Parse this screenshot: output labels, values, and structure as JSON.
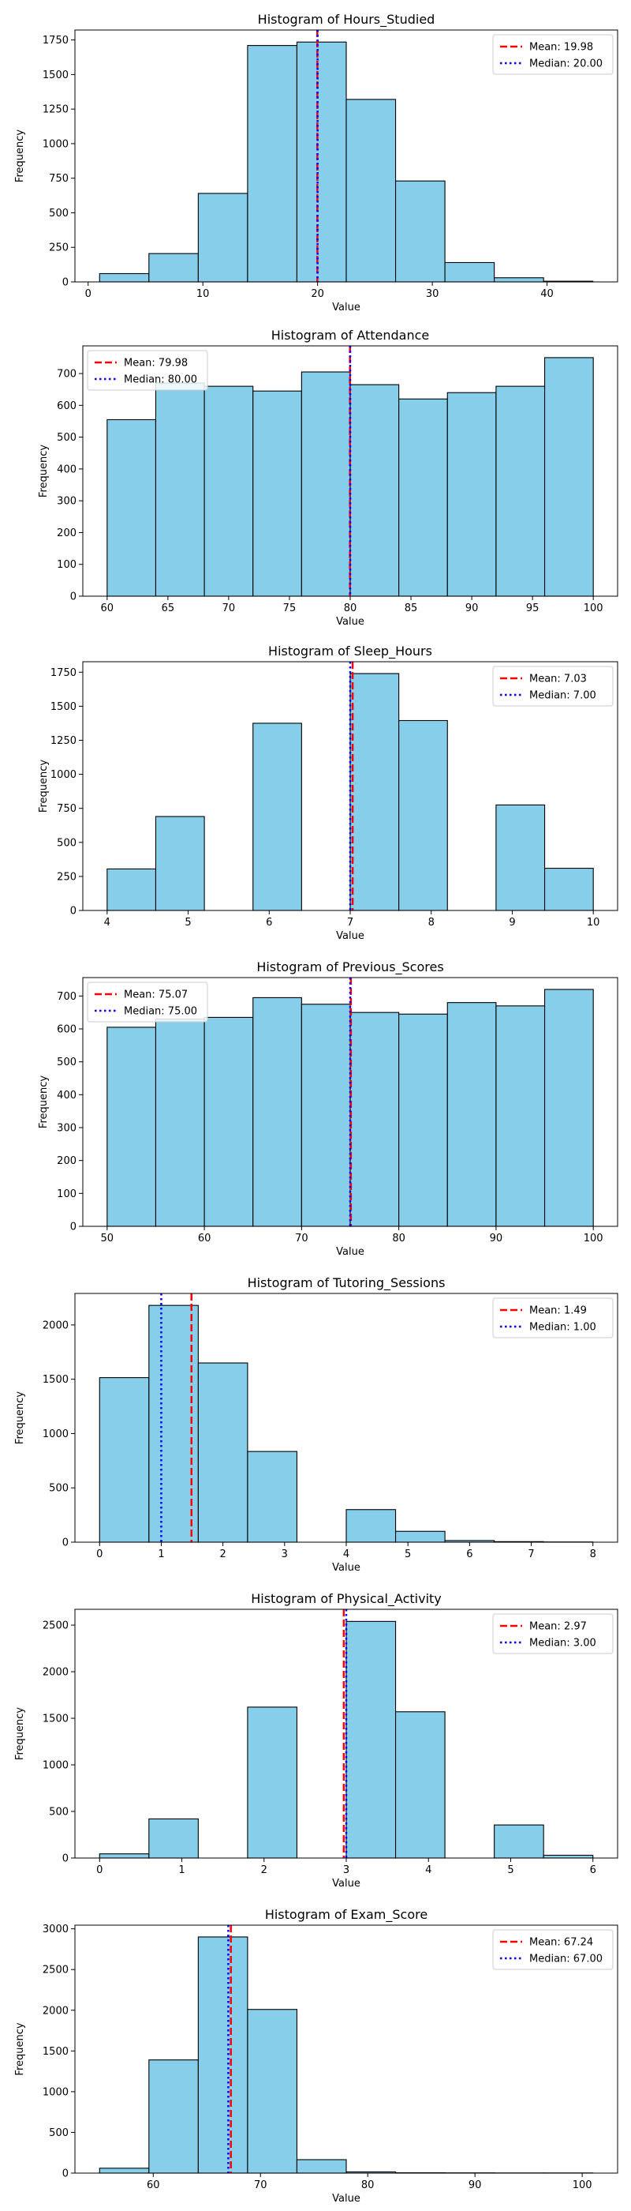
{
  "colors": {
    "bar_fill": "#87ceeb",
    "bar_edge": "#000000",
    "mean_line": "#ff0000",
    "median_line": "#0000ff",
    "axes": "#000000",
    "background": "#ffffff"
  },
  "chart_data": [
    {
      "type": "bar",
      "title": "Histogram of Hours_Studied",
      "xlabel": "Value",
      "ylabel": "Frequency",
      "bin_edges": [
        1,
        5.3,
        9.6,
        13.9,
        18.2,
        22.5,
        26.8,
        31.1,
        35.4,
        39.7,
        44
      ],
      "values": [
        60,
        205,
        640,
        1710,
        1735,
        1320,
        730,
        140,
        30,
        5
      ],
      "xlim": [
        -1.15,
        46.15
      ],
      "ylim": [
        0,
        1822
      ],
      "xticks": [
        0,
        10,
        20,
        30,
        40
      ],
      "yticks": [
        0,
        250,
        500,
        750,
        1000,
        1250,
        1500,
        1750
      ],
      "ytick_labels": [
        "0",
        "250",
        "500",
        "750",
        "1000",
        "1250",
        "1500",
        "1750"
      ],
      "legend_position": "upper right",
      "mean": 19.98,
      "median": 20.0,
      "mean_label": "Mean: 19.98",
      "median_label": "Median: 20.00"
    },
    {
      "type": "bar",
      "title": "Histogram of Attendance",
      "xlabel": "Value",
      "ylabel": "Frequency",
      "bin_edges": [
        60,
        64,
        68,
        72,
        76,
        80,
        84,
        88,
        92,
        96,
        100
      ],
      "values": [
        555,
        670,
        660,
        645,
        705,
        665,
        620,
        640,
        660,
        750
      ],
      "xlim": [
        58,
        102
      ],
      "ylim": [
        0,
        787
      ],
      "xticks": [
        60,
        65,
        70,
        75,
        80,
        85,
        90,
        95,
        100
      ],
      "yticks": [
        0,
        100,
        200,
        300,
        400,
        500,
        600,
        700
      ],
      "ytick_labels": [
        "0",
        "100",
        "200",
        "300",
        "400",
        "500",
        "600",
        "700"
      ],
      "legend_position": "upper left",
      "mean": 79.98,
      "median": 80.0,
      "mean_label": "Mean: 79.98",
      "median_label": "Median: 80.00"
    },
    {
      "type": "bar",
      "title": "Histogram of Sleep_Hours",
      "xlabel": "Value",
      "ylabel": "Frequency",
      "bin_edges": [
        4,
        4.6,
        5.2,
        5.8,
        6.4,
        7,
        7.6,
        8.2,
        8.8,
        9.4,
        10
      ],
      "values": [
        305,
        690,
        0,
        1375,
        0,
        1740,
        1395,
        0,
        775,
        310
      ],
      "xlim": [
        3.7,
        10.3
      ],
      "ylim": [
        0,
        1827
      ],
      "xticks": [
        4,
        5,
        6,
        7,
        8,
        9,
        10
      ],
      "yticks": [
        0,
        250,
        500,
        750,
        1000,
        1250,
        1500,
        1750
      ],
      "ytick_labels": [
        "0",
        "250",
        "500",
        "750",
        "1000",
        "1250",
        "1500",
        "1750"
      ],
      "legend_position": "upper right",
      "mean": 7.03,
      "median": 7.0,
      "mean_label": "Mean: 7.03",
      "median_label": "Median: 7.00"
    },
    {
      "type": "bar",
      "title": "Histogram of Previous_Scores",
      "xlabel": "Value",
      "ylabel": "Frequency",
      "bin_edges": [
        50,
        55,
        60,
        65,
        70,
        75,
        80,
        85,
        90,
        95,
        100
      ],
      "values": [
        605,
        630,
        635,
        695,
        675,
        650,
        645,
        680,
        670,
        720
      ],
      "xlim": [
        47.5,
        102.5
      ],
      "ylim": [
        0,
        756
      ],
      "xticks": [
        50,
        60,
        70,
        80,
        90,
        100
      ],
      "yticks": [
        0,
        100,
        200,
        300,
        400,
        500,
        600,
        700
      ],
      "ytick_labels": [
        "0",
        "100",
        "200",
        "300",
        "400",
        "500",
        "600",
        "700"
      ],
      "legend_position": "upper left",
      "mean": 75.07,
      "median": 75.0,
      "mean_label": "Mean: 75.07",
      "median_label": "Median: 75.00"
    },
    {
      "type": "bar",
      "title": "Histogram of Tutoring_Sessions",
      "xlabel": "Value",
      "ylabel": "Frequency",
      "bin_edges": [
        0,
        0.8,
        1.6,
        2.4,
        3.2,
        4,
        4.8,
        5.6,
        6.4,
        7.2,
        8
      ],
      "values": [
        1515,
        2180,
        1650,
        835,
        0,
        300,
        100,
        15,
        5,
        2
      ],
      "xlim": [
        -0.4,
        8.4
      ],
      "ylim": [
        0,
        2290
      ],
      "xticks": [
        0,
        1,
        2,
        3,
        4,
        5,
        6,
        7,
        8
      ],
      "yticks": [
        0,
        500,
        1000,
        1500,
        2000
      ],
      "ytick_labels": [
        "0",
        "500",
        "1000",
        "1500",
        "2000"
      ],
      "legend_position": "upper right",
      "mean": 1.49,
      "median": 1.0,
      "mean_label": "Mean: 1.49",
      "median_label": "Median: 1.00"
    },
    {
      "type": "bar",
      "title": "Histogram of Physical_Activity",
      "xlabel": "Value",
      "ylabel": "Frequency",
      "bin_edges": [
        0,
        0.6,
        1.2,
        1.8,
        2.4,
        3,
        3.6,
        4.2,
        4.8,
        5.4,
        6
      ],
      "values": [
        45,
        420,
        0,
        1620,
        0,
        2540,
        1570,
        0,
        355,
        30
      ],
      "xlim": [
        -0.3,
        6.3
      ],
      "ylim": [
        0,
        2670
      ],
      "xticks": [
        0,
        1,
        2,
        3,
        4,
        5,
        6
      ],
      "yticks": [
        0,
        500,
        1000,
        1500,
        2000,
        2500
      ],
      "ytick_labels": [
        "0",
        "500",
        "1000",
        "1500",
        "2000",
        "2500"
      ],
      "legend_position": "upper right",
      "mean": 2.97,
      "median": 3.0,
      "mean_label": "Mean: 2.97",
      "median_label": "Median: 3.00"
    },
    {
      "type": "bar",
      "title": "Histogram of Exam_Score",
      "xlabel": "Value",
      "ylabel": "Frequency",
      "bin_edges": [
        55,
        59.6,
        64.2,
        68.8,
        73.4,
        78,
        82.6,
        87.2,
        91.8,
        96.4,
        101
      ],
      "values": [
        60,
        1390,
        2900,
        2010,
        165,
        15,
        4,
        3,
        2,
        2
      ],
      "xlim": [
        52.7,
        103.3
      ],
      "ylim": [
        0,
        3045
      ],
      "xticks": [
        60,
        70,
        80,
        90,
        100
      ],
      "yticks": [
        0,
        500,
        1000,
        1500,
        2000,
        2500,
        3000
      ],
      "ytick_labels": [
        "0",
        "500",
        "1000",
        "1500",
        "2000",
        "2500",
        "3000"
      ],
      "legend_position": "upper right",
      "mean": 67.24,
      "median": 67.0,
      "mean_label": "Mean: 67.24",
      "median_label": "Median: 67.00"
    }
  ]
}
